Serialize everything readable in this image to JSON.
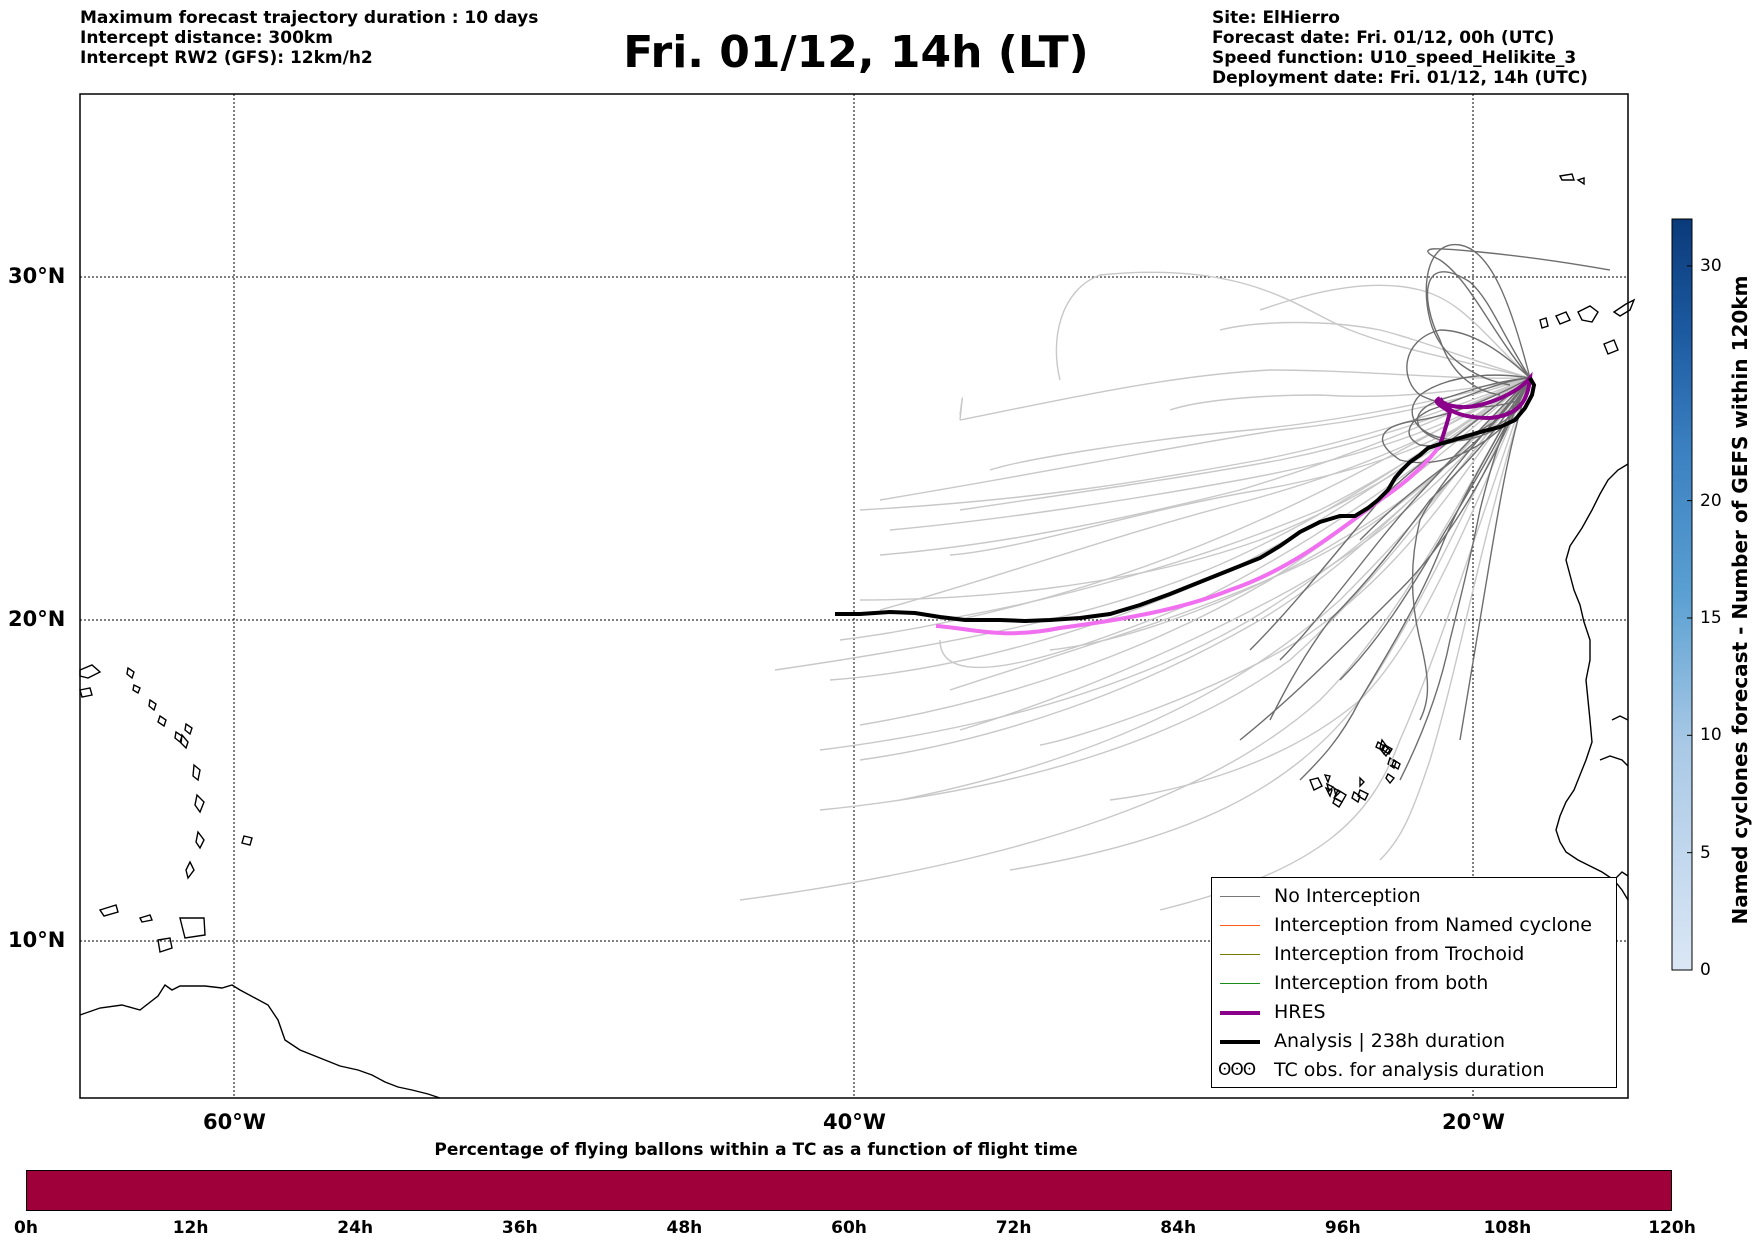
{
  "header": {
    "left_lines": [
      "Maximum forecast trajectory duration : 10 days",
      "Intercept distance: 300km",
      "Intercept RW2 (GFS):  12km/h2"
    ],
    "title": "Fri. 01/12, 14h (LT)",
    "right_lines": [
      "Site: ElHierro",
      "Forecast date: Fri. 01/12, 00h (UTC)",
      "Speed function: U10_speed_Helikite_3",
      "Deployment date: Fri. 01/12, 14h (UTC)"
    ]
  },
  "map": {
    "lat_labels": [
      "30°N",
      "20°N",
      "10°N"
    ],
    "lon_labels": [
      "60°W",
      "40°W",
      "20°W"
    ],
    "colors": {
      "no_interception": "#777777",
      "no_interception_light": "#c8c8c8",
      "named_cyclone": "#ff5b1a",
      "trochoid": "#7a7a00",
      "both": "#1a8c1a",
      "hres": "#8b008b",
      "analysis": "#000000",
      "analysis_pink": "#f070f0"
    }
  },
  "legend": {
    "items": [
      {
        "label": "No Interception",
        "icon": "gray-line"
      },
      {
        "label": "Interception from Named cyclone",
        "icon": "orange-line"
      },
      {
        "label": "Interception from Trochoid",
        "icon": "olive-line"
      },
      {
        "label": "Interception from both",
        "icon": "green-line"
      },
      {
        "label": "HRES",
        "icon": "purple-thick-line"
      },
      {
        "label": "Analysis | 238h duration",
        "icon": "black-thick-line"
      },
      {
        "label": "TC obs. for analysis duration",
        "icon": "cyclone-symbols",
        "symbol": "ʘʘʘ"
      }
    ]
  },
  "colorbar": {
    "label": "Named cyclones forecast - Number of GEFS within 120km",
    "ticks": [
      "0",
      "5",
      "10",
      "15",
      "20",
      "30"
    ],
    "tick_values": [
      0,
      5,
      10,
      15,
      20,
      30
    ],
    "max": 32,
    "color_low": "#dbe7f5",
    "color_high": "#0a3a7a"
  },
  "tc_bar": {
    "title": "Percentage of flying ballons within a TC as a function of flight time",
    "ticks": [
      "0h",
      "12h",
      "24h",
      "36h",
      "48h",
      "60h",
      "72h",
      "84h",
      "96h",
      "108h",
      "120h"
    ],
    "color": "#a0003a"
  }
}
